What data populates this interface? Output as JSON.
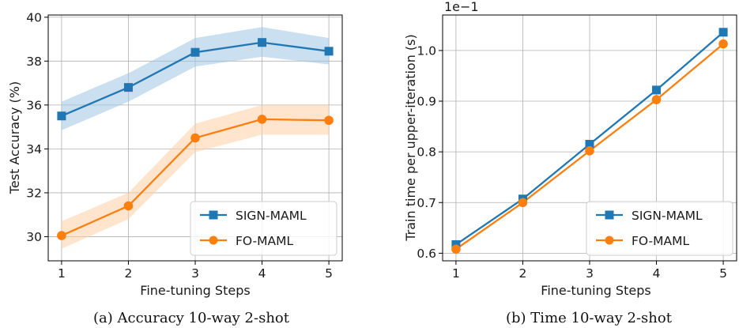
{
  "chart_data": [
    {
      "type": "line",
      "caption": "(a) Accuracy 10-way 2-shot",
      "xlabel": "Fine-tuning Steps",
      "ylabel": "Test Accuracy (%)",
      "x": [
        1,
        2,
        3,
        4,
        5
      ],
      "xticks": [
        "1",
        "2",
        "3",
        "4",
        "5"
      ],
      "xlim": [
        0.8,
        5.2
      ],
      "ylim": [
        28.9,
        40.1
      ],
      "yticks": [
        "30",
        "32",
        "34",
        "36",
        "38",
        "40"
      ],
      "ytick_values": [
        30,
        32,
        34,
        36,
        38,
        40
      ],
      "grid": true,
      "legend_position": "lower right",
      "series": [
        {
          "name": "SIGN-MAML",
          "color": "#1f77b4",
          "band_color": "#9fc4e2",
          "marker": "square",
          "values": [
            35.5,
            36.8,
            38.4,
            38.85,
            38.45
          ],
          "band_lower": [
            34.85,
            36.15,
            37.75,
            38.2,
            37.85
          ],
          "band_upper": [
            36.15,
            37.45,
            39.05,
            39.55,
            39.05
          ]
        },
        {
          "name": "FO-MAML",
          "color": "#ff7f0e",
          "band_color": "#ffcfa6",
          "marker": "circle",
          "values": [
            30.05,
            31.4,
            34.5,
            35.35,
            35.3
          ],
          "band_lower": [
            29.45,
            30.8,
            33.85,
            34.65,
            34.65
          ],
          "band_upper": [
            30.7,
            32.0,
            35.15,
            36.0,
            36.0
          ]
        }
      ]
    },
    {
      "type": "line",
      "caption": "(b) Time 10-way 2-shot",
      "xlabel": "Fine-tuning Steps",
      "ylabel": "Train time per upper-iteration (s)",
      "y_offset_label": "1e−1",
      "x": [
        1,
        2,
        3,
        4,
        5
      ],
      "xticks": [
        "1",
        "2",
        "3",
        "4",
        "5"
      ],
      "xlim": [
        0.8,
        5.2
      ],
      "ylim": [
        0.585,
        1.07
      ],
      "yticks": [
        "0.6",
        "0.7",
        "0.8",
        "0.9",
        "1.0"
      ],
      "ytick_values": [
        0.6,
        0.7,
        0.8,
        0.9,
        1.0
      ],
      "grid": true,
      "legend_position": "lower right",
      "series": [
        {
          "name": "SIGN-MAML",
          "color": "#1f77b4",
          "marker": "square",
          "values": [
            0.617,
            0.707,
            0.815,
            0.922,
            1.036
          ]
        },
        {
          "name": "FO-MAML",
          "color": "#ff7f0e",
          "marker": "circle",
          "values": [
            0.608,
            0.7,
            0.802,
            0.903,
            1.013
          ]
        }
      ]
    }
  ]
}
